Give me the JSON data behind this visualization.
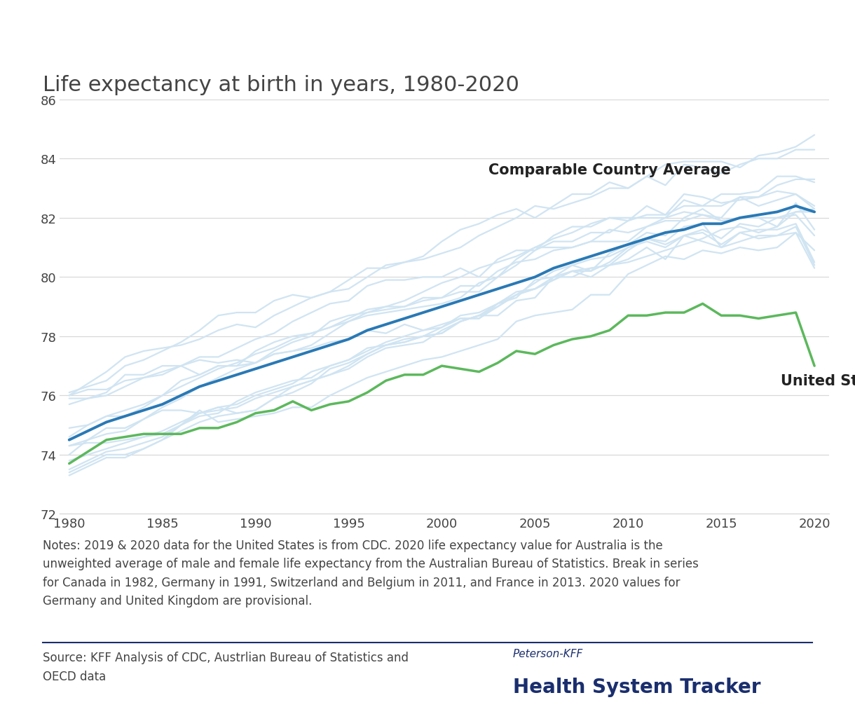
{
  "title": "Life expectancy at birth in years, 1980-2020",
  "years": [
    1980,
    1981,
    1982,
    1983,
    1984,
    1985,
    1986,
    1987,
    1988,
    1989,
    1990,
    1991,
    1992,
    1993,
    1994,
    1995,
    1996,
    1997,
    1998,
    1999,
    2000,
    2001,
    2002,
    2003,
    2004,
    2005,
    2006,
    2007,
    2008,
    2009,
    2010,
    2011,
    2012,
    2013,
    2014,
    2015,
    2016,
    2017,
    2018,
    2019,
    2020
  ],
  "us_data": [
    73.7,
    74.1,
    74.5,
    74.6,
    74.7,
    74.7,
    74.7,
    74.9,
    74.9,
    75.1,
    75.4,
    75.5,
    75.8,
    75.5,
    75.7,
    75.8,
    76.1,
    76.5,
    76.7,
    76.7,
    77.0,
    76.9,
    76.8,
    77.1,
    77.5,
    77.4,
    77.7,
    77.9,
    78.0,
    78.2,
    78.7,
    78.7,
    78.8,
    78.8,
    79.1,
    78.7,
    78.7,
    78.6,
    78.7,
    78.8,
    77.0
  ],
  "comparable_avg": [
    74.5,
    74.8,
    75.1,
    75.3,
    75.5,
    75.7,
    76.0,
    76.3,
    76.5,
    76.7,
    76.9,
    77.1,
    77.3,
    77.5,
    77.7,
    77.9,
    78.2,
    78.4,
    78.6,
    78.8,
    79.0,
    79.2,
    79.4,
    79.6,
    79.8,
    80.0,
    80.3,
    80.5,
    80.7,
    80.9,
    81.1,
    81.3,
    81.5,
    81.6,
    81.8,
    81.8,
    82.0,
    82.1,
    82.2,
    82.4,
    82.2
  ],
  "peer_countries": {
    "Australia": [
      74.6,
      75.0,
      75.3,
      75.5,
      75.7,
      76.0,
      76.3,
      76.6,
      76.9,
      77.1,
      77.4,
      77.6,
      77.9,
      78.1,
      78.3,
      78.6,
      78.9,
      79.0,
      79.2,
      79.5,
      79.8,
      80.0,
      80.3,
      80.5,
      80.7,
      81.0,
      81.3,
      81.5,
      81.8,
      82.0,
      82.0,
      82.0,
      82.0,
      82.6,
      82.4,
      82.8,
      82.8,
      82.9,
      83.4,
      83.4,
      83.2
    ],
    "Austria": [
      73.5,
      73.8,
      74.1,
      74.2,
      74.4,
      74.6,
      75.0,
      75.4,
      75.5,
      75.6,
      75.9,
      76.1,
      76.3,
      76.5,
      76.7,
      77.0,
      77.4,
      77.7,
      77.9,
      78.0,
      78.3,
      78.7,
      78.8,
      79.1,
      79.3,
      79.9,
      80.0,
      80.4,
      80.6,
      80.7,
      81.0,
      81.3,
      81.1,
      81.4,
      81.6,
      81.3,
      81.8,
      81.7,
      82.0,
      82.1,
      81.4
    ],
    "Belgium": [
      73.4,
      73.7,
      74.0,
      74.0,
      74.2,
      74.5,
      75.0,
      75.3,
      75.4,
      75.8,
      76.1,
      76.3,
      76.5,
      76.6,
      77.0,
      77.2,
      77.5,
      77.8,
      78.0,
      78.2,
      78.3,
      78.6,
      78.6,
      79.1,
      79.5,
      79.6,
      80.0,
      80.2,
      80.3,
      80.4,
      80.6,
      81.0,
      80.6,
      81.4,
      81.5,
      81.1,
      81.5,
      81.6,
      81.6,
      81.8,
      80.5
    ],
    "Canada": [
      74.9,
      75.0,
      75.3,
      75.3,
      75.6,
      76.0,
      76.5,
      76.7,
      77.0,
      77.0,
      77.5,
      77.8,
      78.0,
      78.1,
      78.3,
      78.5,
      78.8,
      78.9,
      79.0,
      79.2,
      79.3,
      79.7,
      79.7,
      80.2,
      80.5,
      80.6,
      80.9,
      81.0,
      81.2,
      81.2,
      81.2,
      81.7,
      81.9,
      81.9,
      82.1,
      81.9,
      82.0,
      82.0,
      82.0,
      82.2,
      82.2
    ],
    "Denmark": [
      74.3,
      74.4,
      74.4,
      74.5,
      74.6,
      74.7,
      75.0,
      75.5,
      75.1,
      75.2,
      75.3,
      75.4,
      75.6,
      75.6,
      76.0,
      76.3,
      76.6,
      76.8,
      77.0,
      77.2,
      77.3,
      77.5,
      77.7,
      77.9,
      78.5,
      78.7,
      78.8,
      78.9,
      79.4,
      79.4,
      80.1,
      80.4,
      80.7,
      80.6,
      80.9,
      80.8,
      81.0,
      80.9,
      81.0,
      81.5,
      80.9
    ],
    "Finland": [
      74.0,
      74.5,
      74.9,
      74.9,
      75.2,
      75.5,
      75.5,
      75.4,
      75.6,
      75.4,
      75.5,
      75.9,
      76.1,
      76.4,
      76.9,
      77.1,
      77.4,
      77.7,
      77.8,
      78.0,
      78.1,
      78.5,
      78.7,
      79.1,
      79.4,
      79.6,
      79.9,
      80.2,
      80.0,
      80.4,
      80.5,
      80.7,
      80.9,
      81.1,
      81.3,
      81.6,
      81.7,
      81.5,
      81.7,
      82.2,
      82.3
    ],
    "France": [
      74.3,
      74.5,
      74.7,
      74.8,
      75.2,
      75.6,
      75.9,
      76.3,
      76.6,
      76.9,
      77.1,
      77.5,
      77.8,
      78.0,
      78.5,
      78.7,
      78.8,
      79.0,
      79.0,
      79.3,
      79.3,
      79.5,
      79.5,
      80.0,
      80.4,
      80.9,
      81.2,
      81.2,
      81.5,
      81.5,
      81.9,
      82.4,
      82.1,
      82.8,
      82.7,
      82.5,
      82.6,
      82.7,
      82.9,
      82.8,
      82.3
    ],
    "Germany": [
      73.3,
      73.6,
      73.9,
      73.9,
      74.2,
      74.5,
      74.8,
      75.1,
      75.3,
      75.4,
      75.5,
      75.9,
      76.3,
      76.5,
      76.7,
      76.9,
      77.3,
      77.6,
      77.7,
      77.8,
      78.2,
      78.5,
      78.7,
      79.0,
      79.4,
      79.6,
      79.9,
      80.2,
      80.2,
      80.5,
      81.0,
      81.2,
      81.0,
      81.4,
      81.2,
      81.0,
      81.5,
      81.3,
      81.4,
      81.5,
      80.3
    ],
    "Japan": [
      76.1,
      76.3,
      76.5,
      77.0,
      77.2,
      77.5,
      77.8,
      78.2,
      78.7,
      78.8,
      78.8,
      79.2,
      79.4,
      79.3,
      79.5,
      79.6,
      80.0,
      80.4,
      80.5,
      80.7,
      81.2,
      81.6,
      81.8,
      82.1,
      82.3,
      82.0,
      82.4,
      82.8,
      82.8,
      83.2,
      83.0,
      83.4,
      83.8,
      83.9,
      83.9,
      83.9,
      83.7,
      84.1,
      84.2,
      84.4,
      84.8
    ],
    "Netherlands": [
      76.0,
      76.2,
      76.2,
      76.5,
      76.6,
      76.7,
      77.0,
      77.2,
      77.1,
      77.2,
      77.1,
      77.4,
      77.5,
      77.6,
      77.8,
      77.9,
      78.2,
      78.1,
      78.4,
      78.2,
      78.4,
      78.6,
      78.6,
      79.0,
      79.4,
      79.8,
      80.2,
      80.4,
      80.2,
      80.8,
      81.1,
      81.5,
      81.4,
      82.0,
      82.3,
      81.9,
      82.0,
      82.0,
      81.7,
      82.5,
      81.6
    ],
    "Norway": [
      75.9,
      75.9,
      76.0,
      76.3,
      76.6,
      76.8,
      77.0,
      76.7,
      77.0,
      77.0,
      77.1,
      77.4,
      77.5,
      77.7,
      78.1,
      78.5,
      78.7,
      78.8,
      78.9,
      79.0,
      79.1,
      79.3,
      79.8,
      80.0,
      80.6,
      81.0,
      81.0,
      81.0,
      81.2,
      81.6,
      81.5,
      81.7,
      82.0,
      82.2,
      82.1,
      82.0,
      82.7,
      82.7,
      83.1,
      83.3,
      83.3
    ],
    "Sweden": [
      75.7,
      75.9,
      76.1,
      76.7,
      76.7,
      77.0,
      77.0,
      77.3,
      77.3,
      77.6,
      77.9,
      78.1,
      78.5,
      78.8,
      79.1,
      79.2,
      79.7,
      79.9,
      79.9,
      80.0,
      80.0,
      80.3,
      80.0,
      80.6,
      80.9,
      80.9,
      81.4,
      81.7,
      81.7,
      82.0,
      81.9,
      82.1,
      82.1,
      82.4,
      82.4,
      82.4,
      82.7,
      82.4,
      82.6,
      82.8,
      82.4
    ],
    "Switzerland": [
      76.0,
      76.4,
      76.8,
      77.3,
      77.5,
      77.6,
      77.7,
      77.9,
      78.2,
      78.4,
      78.3,
      78.7,
      79.0,
      79.3,
      79.5,
      79.9,
      80.3,
      80.3,
      80.5,
      80.6,
      80.8,
      81.0,
      81.4,
      81.7,
      82.0,
      82.4,
      82.3,
      82.5,
      82.7,
      83.0,
      83.0,
      83.4,
      83.1,
      83.8,
      83.7,
      83.5,
      83.8,
      84.0,
      84.0,
      84.3,
      84.3
    ],
    "United Kingdom": [
      73.8,
      74.0,
      74.2,
      74.4,
      74.6,
      74.8,
      75.1,
      75.4,
      75.6,
      75.7,
      76.0,
      76.2,
      76.4,
      76.8,
      77.0,
      77.2,
      77.6,
      77.7,
      77.8,
      78.0,
      78.1,
      78.5,
      78.7,
      78.7,
      79.2,
      79.3,
      80.0,
      80.0,
      80.3,
      80.4,
      80.9,
      81.3,
      81.2,
      81.7,
      81.8,
      81.0,
      81.2,
      81.4,
      81.4,
      81.7,
      80.4
    ]
  },
  "ylim": [
    72,
    86
  ],
  "yticks": [
    72,
    74,
    76,
    78,
    80,
    82,
    84,
    86
  ],
  "xticks": [
    1980,
    1985,
    1990,
    1995,
    2000,
    2005,
    2010,
    2015,
    2020
  ],
  "us_color": "#5cb85c",
  "avg_color": "#2979b5",
  "peer_color": "#d0e4f2",
  "background_color": "#ffffff",
  "grid_color": "#d8d8d8",
  "text_color": "#444444",
  "label_color": "#222222",
  "notes_text": "Notes: 2019 & 2020 data for the United States is from CDC. 2020 life expectancy value for Australia is the\nunweighted average of male and female life expectancy from the Australian Bureau of Statistics. Break in series\nfor Canada in 1982, Germany in 1991, Switzerland and Belgium in 2011, and France in 2013. 2020 values for\nGermany and United Kingdom are provisional.",
  "source_text": "Source: KFF Analysis of CDC, Austrlian Bureau of Statistics and\nOECD data",
  "label_avg": "Comparable Country Average",
  "label_us": "United States",
  "divider_color": "#1a2e6e",
  "logo_color": "#1a2e6e",
  "title_fontsize": 22,
  "tick_fontsize": 13,
  "label_fontsize": 15,
  "notes_fontsize": 12,
  "source_fontsize": 12
}
